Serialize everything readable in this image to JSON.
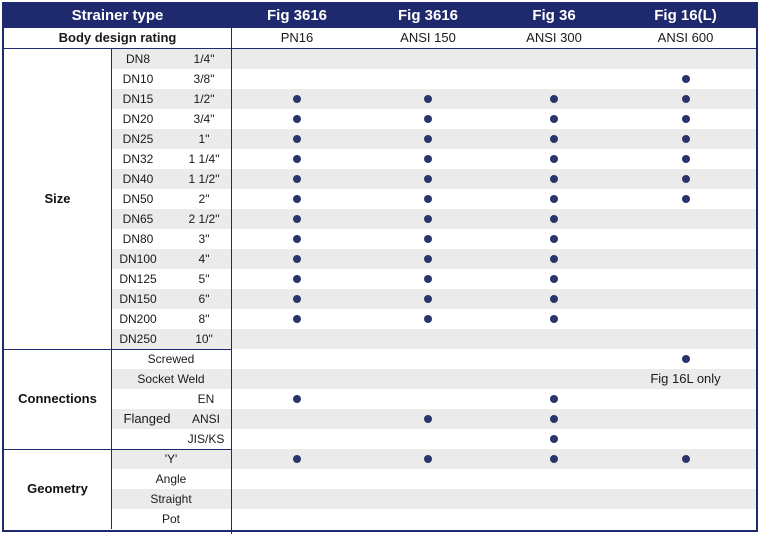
{
  "header": {
    "title": "Strainer type",
    "columns": [
      "Fig 3616",
      "Fig 3616",
      "Fig 36",
      "Fig 16(L)"
    ]
  },
  "rating": {
    "label": "Body design rating",
    "values": [
      "PN16",
      "ANSI 150",
      "ANSI 300",
      "ANSI 600"
    ]
  },
  "groups": {
    "size": "Size",
    "connections": "Connections",
    "geometry": "Geometry"
  },
  "sizes": [
    {
      "dn": "DN8",
      "inch": "1/4\"",
      "marks": [
        false,
        false,
        false,
        false
      ]
    },
    {
      "dn": "DN10",
      "inch": "3/8\"",
      "marks": [
        false,
        false,
        false,
        true
      ]
    },
    {
      "dn": "DN15",
      "inch": "1/2\"",
      "marks": [
        true,
        true,
        true,
        true
      ]
    },
    {
      "dn": "DN20",
      "inch": "3/4\"",
      "marks": [
        true,
        true,
        true,
        true
      ]
    },
    {
      "dn": "DN25",
      "inch": "1\"",
      "marks": [
        true,
        true,
        true,
        true
      ]
    },
    {
      "dn": "DN32",
      "inch": "1 1/4\"",
      "marks": [
        true,
        true,
        true,
        true
      ]
    },
    {
      "dn": "DN40",
      "inch": "1 1/2\"",
      "marks": [
        true,
        true,
        true,
        true
      ]
    },
    {
      "dn": "DN50",
      "inch": "2\"",
      "marks": [
        true,
        true,
        true,
        true
      ]
    },
    {
      "dn": "DN65",
      "inch": "2 1/2\"",
      "marks": [
        true,
        true,
        true,
        false
      ]
    },
    {
      "dn": "DN80",
      "inch": "3\"",
      "marks": [
        true,
        true,
        true,
        false
      ]
    },
    {
      "dn": "DN100",
      "inch": "4\"",
      "marks": [
        true,
        true,
        true,
        false
      ]
    },
    {
      "dn": "DN125",
      "inch": "5\"",
      "marks": [
        true,
        true,
        true,
        false
      ]
    },
    {
      "dn": "DN150",
      "inch": "6\"",
      "marks": [
        true,
        true,
        true,
        false
      ]
    },
    {
      "dn": "DN200",
      "inch": "8\"",
      "marks": [
        true,
        true,
        true,
        false
      ]
    },
    {
      "dn": "DN250",
      "inch": "10\"",
      "marks": [
        false,
        false,
        false,
        false
      ]
    }
  ],
  "connections": {
    "screwed": {
      "label": "Screwed",
      "marks": [
        false,
        false,
        false,
        true
      ]
    },
    "socket_weld": {
      "label": "Socket Weld",
      "note": "Fig 16L only"
    },
    "flanged_label": "Flanged",
    "flanged": [
      {
        "label": "EN",
        "marks": [
          true,
          false,
          true,
          false
        ]
      },
      {
        "label": "ANSI",
        "marks": [
          false,
          true,
          true,
          false
        ]
      },
      {
        "label": "JIS/KS",
        "marks": [
          false,
          false,
          true,
          false
        ]
      }
    ]
  },
  "geometry": [
    {
      "label": "'Y'",
      "marks": [
        true,
        true,
        true,
        true
      ]
    },
    {
      "label": "Angle",
      "marks": [
        false,
        false,
        false,
        false
      ]
    },
    {
      "label": "Straight",
      "marks": [
        false,
        false,
        false,
        false
      ]
    },
    {
      "label": "Pot",
      "marks": [
        false,
        false,
        false,
        false
      ]
    }
  ],
  "colors": {
    "navy": "#1f2a6e",
    "dot": "#2a3569",
    "stripe": "#ebebeb"
  }
}
